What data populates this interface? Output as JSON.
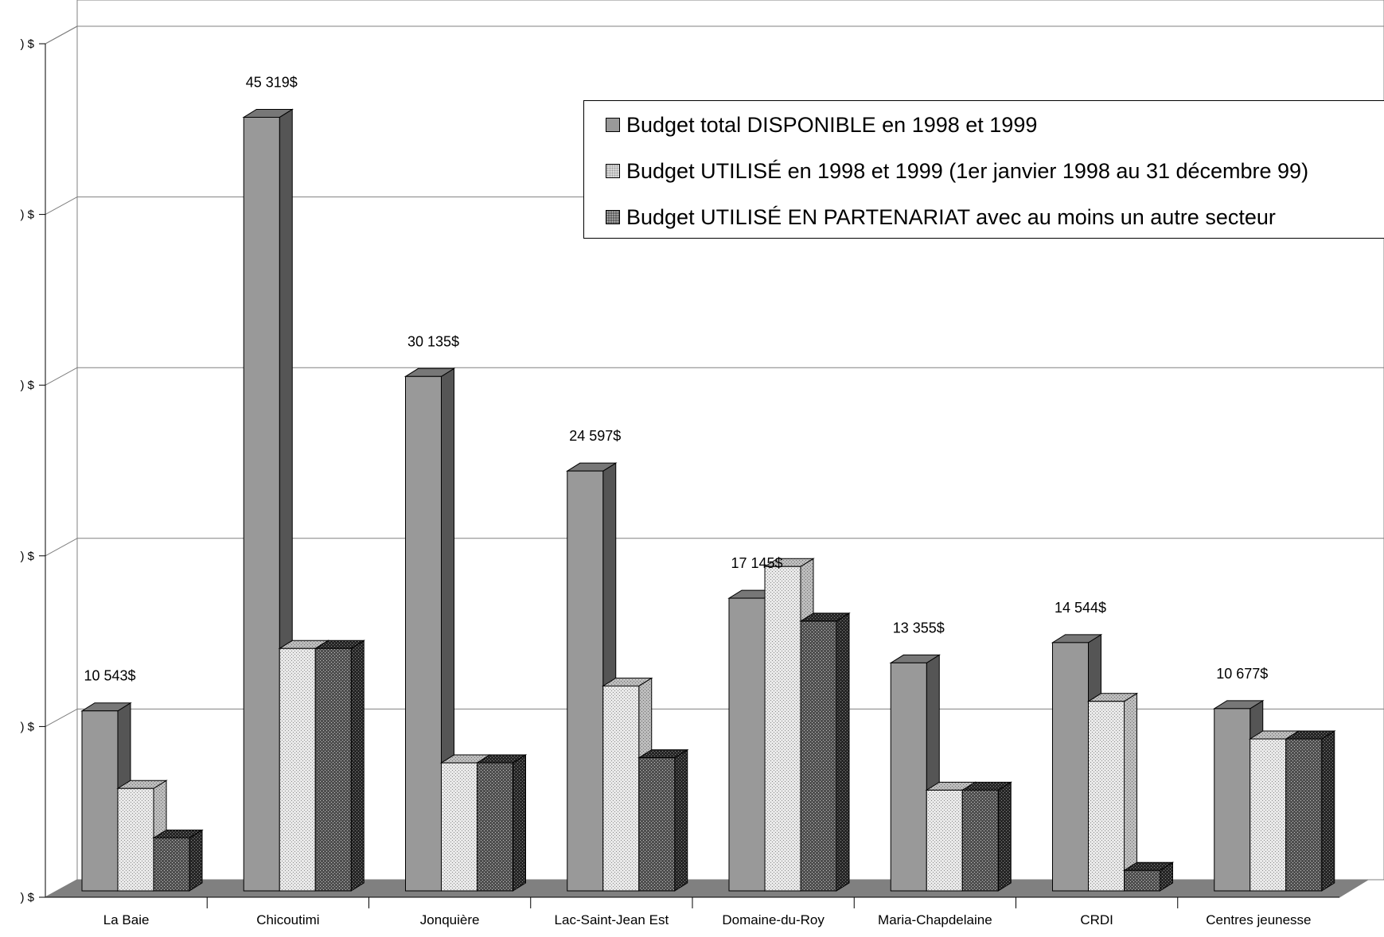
{
  "chart_data": {
    "type": "bar",
    "title": "",
    "xlabel": "",
    "ylabel": "",
    "ylim": [
      0,
      50000
    ],
    "yticks": [
      0,
      10000,
      20000,
      30000,
      40000,
      50000
    ],
    "ytick_labels": [
      ") $",
      ") $",
      ") $",
      ") $",
      ") $",
      ") $"
    ],
    "grid": true,
    "style": "3d-clustered-columns",
    "legend_position": "top-right",
    "categories": [
      "La Baie",
      "Chicoutimi",
      "Jonquière",
      "Lac-Saint-Jean Est",
      "Domaine-du-Roy",
      "Maria-Chapdelaine",
      "CRDI",
      "Centres jeunesse"
    ],
    "series": [
      {
        "name": "Budget total DISPONIBLE en 1998 et 1999",
        "values": [
          10543,
          45319,
          30135,
          24597,
          17145,
          13355,
          14544,
          10677
        ],
        "color": "#999999",
        "pattern": "solid"
      },
      {
        "name": "Budget UTILISÉ en 1998 et 1999 (1er janvier 1998 au 31 décembre 99)",
        "values": [
          6000,
          14200,
          7500,
          12000,
          19000,
          5900,
          11100,
          8900
        ],
        "color": "#e6e6e6",
        "pattern": "light-dots"
      },
      {
        "name": "Budget UTILISÉ EN PARTENARIAT avec au moins un autre secteur",
        "values": [
          3100,
          14200,
          7500,
          7800,
          15800,
          5900,
          1200,
          8900
        ],
        "color": "#4a4a4a",
        "pattern": "dark-dots"
      }
    ],
    "data_labels": [
      "10 543$",
      "45 319$",
      "30 135$",
      "24 597$",
      "17 145$",
      "13 355$",
      "14 544$",
      "10 677$"
    ]
  }
}
